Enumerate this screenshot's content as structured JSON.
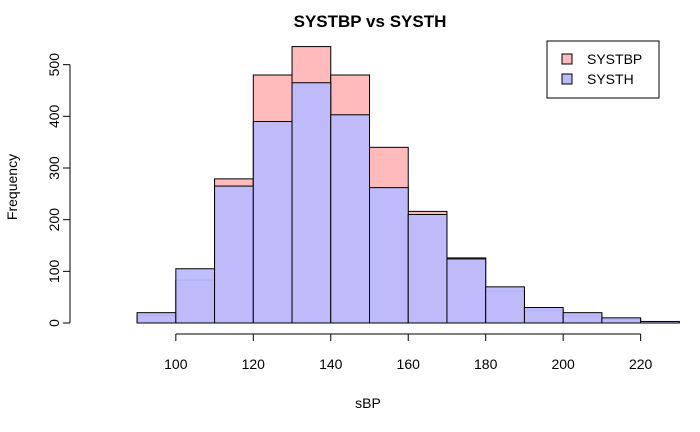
{
  "chart_data": {
    "type": "histogram",
    "title": "SYSTBP vs SYSTH",
    "xlabel": "sBP",
    "ylabel": "Frequency",
    "xlim": [
      75,
      225
    ],
    "ylim": [
      0,
      540
    ],
    "x_ticks": [
      100,
      120,
      140,
      160,
      180,
      200,
      220
    ],
    "y_ticks": [
      0,
      100,
      200,
      300,
      400,
      500
    ],
    "bin_edges": [
      80,
      90,
      100,
      110,
      120,
      130,
      140,
      150,
      160,
      170,
      180,
      190,
      200,
      210,
      220,
      230
    ],
    "legend_position": "top-right",
    "grid": false,
    "series": [
      {
        "name": "SYSTBP",
        "color": "#ffbbbb",
        "values": [
          0,
          15,
          83,
          279,
          480,
          535,
          480,
          340,
          216,
          126,
          62,
          25,
          14,
          7,
          0
        ]
      },
      {
        "name": "SYSTH",
        "color": "#bbbbff",
        "values": [
          0,
          20,
          105,
          265,
          390,
          465,
          403,
          262,
          210,
          124,
          70,
          30,
          20,
          10,
          3
        ]
      }
    ],
    "overlap_color": "#bf8fd0"
  }
}
